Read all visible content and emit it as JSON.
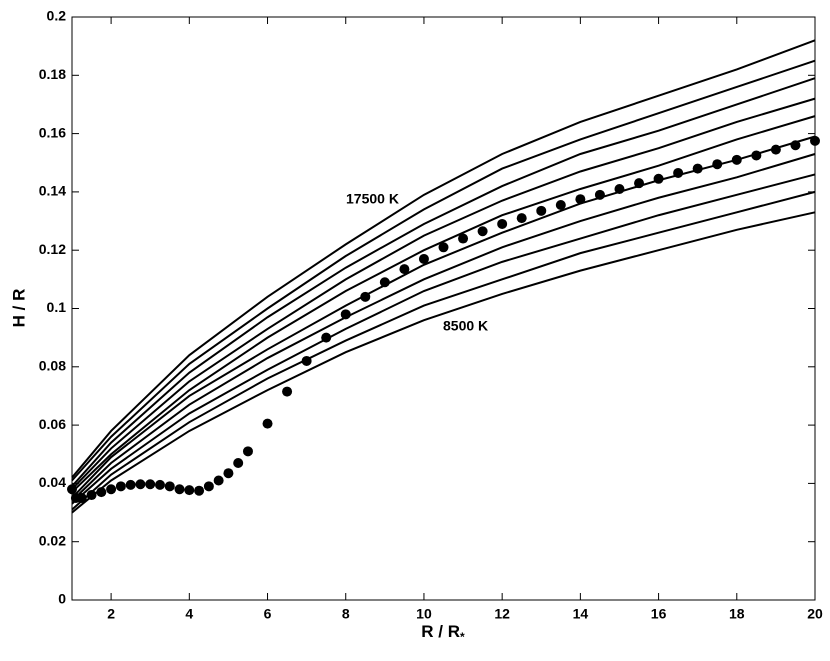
{
  "chart_data": {
    "type": "line",
    "xlabel": "R / R",
    "xlabel_subscript": "*",
    "ylabel": "H / R",
    "annotations": [
      "17500 K",
      "8500 K"
    ],
    "xlim": [
      1,
      20
    ],
    "xticks": [
      2,
      4,
      6,
      8,
      10,
      12,
      14,
      16,
      18,
      20
    ],
    "ylim": [
      0,
      0.2
    ],
    "yticks": [
      0,
      0.02,
      0.04,
      0.06,
      0.08,
      0.1,
      0.12,
      0.14,
      0.16,
      0.18,
      0.2
    ],
    "grid": false,
    "x": [
      1,
      2,
      4,
      6,
      8,
      10,
      12,
      14,
      16,
      18,
      20
    ],
    "series": [
      {
        "color": "#000000",
        "values": [
          0.03,
          0.041,
          0.058,
          0.072,
          0.085,
          0.096,
          0.105,
          0.113,
          0.12,
          0.127,
          0.133
        ]
      },
      {
        "color": "#000000",
        "values": [
          0.031,
          0.043,
          0.061,
          0.076,
          0.089,
          0.101,
          0.11,
          0.119,
          0.126,
          0.133,
          0.14
        ]
      },
      {
        "color": "#000000",
        "values": [
          0.033,
          0.045,
          0.064,
          0.079,
          0.093,
          0.106,
          0.116,
          0.124,
          0.132,
          0.139,
          0.146
        ]
      },
      {
        "color": "#000000",
        "values": [
          0.034,
          0.047,
          0.067,
          0.083,
          0.097,
          0.11,
          0.121,
          0.13,
          0.138,
          0.145,
          0.153
        ]
      },
      {
        "color": "#000000",
        "values": [
          0.035,
          0.049,
          0.07,
          0.086,
          0.101,
          0.115,
          0.126,
          0.136,
          0.144,
          0.151,
          0.159
        ]
      },
      {
        "color": "#000000",
        "values": [
          0.037,
          0.05,
          0.072,
          0.09,
          0.106,
          0.12,
          0.132,
          0.141,
          0.149,
          0.158,
          0.166
        ]
      },
      {
        "color": "#000000",
        "values": [
          0.038,
          0.052,
          0.075,
          0.093,
          0.11,
          0.125,
          0.137,
          0.147,
          0.155,
          0.164,
          0.172
        ]
      },
      {
        "color": "#000000",
        "values": [
          0.039,
          0.054,
          0.078,
          0.097,
          0.114,
          0.129,
          0.142,
          0.153,
          0.161,
          0.17,
          0.179
        ]
      },
      {
        "color": "#000000",
        "values": [
          0.041,
          0.056,
          0.081,
          0.1,
          0.118,
          0.134,
          0.148,
          0.158,
          0.167,
          0.176,
          0.185
        ]
      },
      {
        "color": "#000000",
        "values": [
          0.042,
          0.058,
          0.084,
          0.104,
          0.122,
          0.139,
          0.153,
          0.164,
          0.173,
          0.182,
          0.192
        ]
      }
    ],
    "markers": {
      "color": "#000000",
      "x": [
        1,
        1.1,
        1.25,
        1.5,
        1.75,
        2,
        2.25,
        2.5,
        2.75,
        3,
        3.25,
        3.5,
        3.75,
        4,
        4.25,
        4.5,
        4.75,
        5,
        5.25,
        5.5,
        6,
        6.5,
        7,
        7.5,
        8,
        8.5,
        9,
        9.5,
        10,
        10.5,
        11,
        11.5,
        12,
        12.5,
        13,
        13.5,
        14,
        14.5,
        15,
        15.5,
        16,
        16.5,
        17,
        17.5,
        18,
        18.5,
        19,
        19.5,
        20
      ],
      "values": [
        0.038,
        0.035,
        0.035,
        0.036,
        0.037,
        0.038,
        0.039,
        0.0395,
        0.0397,
        0.0397,
        0.0395,
        0.039,
        0.038,
        0.0377,
        0.0375,
        0.039,
        0.041,
        0.0435,
        0.047,
        0.051,
        0.0605,
        0.0715,
        0.082,
        0.09,
        0.098,
        0.104,
        0.109,
        0.1135,
        0.117,
        0.121,
        0.124,
        0.1265,
        0.129,
        0.131,
        0.1335,
        0.1355,
        0.1375,
        0.139,
        0.141,
        0.143,
        0.1445,
        0.1465,
        0.148,
        0.1495,
        0.151,
        0.1525,
        0.1545,
        0.156,
        0.1575
      ]
    }
  }
}
